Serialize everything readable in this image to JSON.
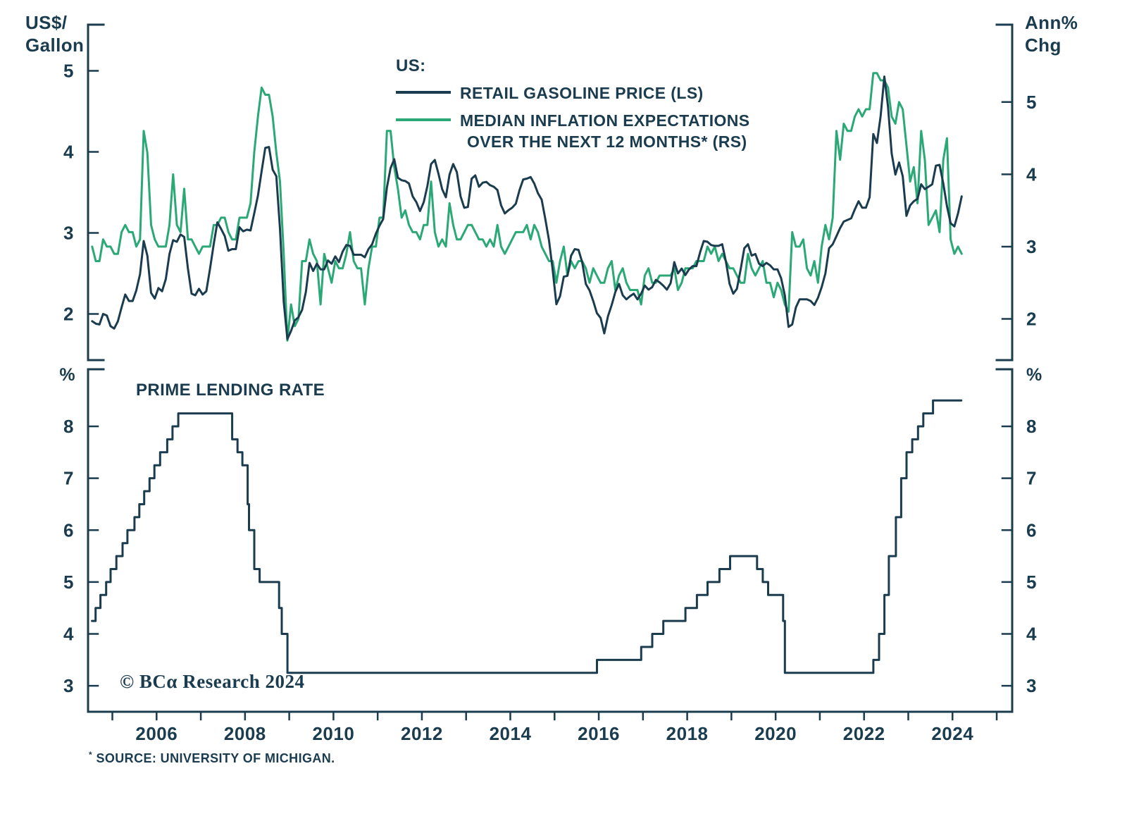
{
  "colors": {
    "navy": "#1a3c4e",
    "green": "#2aa876",
    "background": "#ffffff"
  },
  "legend": {
    "title": "US:",
    "items": [
      {
        "label": "RETAIL GASOLINE PRICE (LS)",
        "color": "#1a3c4e"
      },
      {
        "label_line1": "MEDIAN INFLATION EXPECTATIONS",
        "label_line2": "OVER THE NEXT 12 MONTHS* (RS)",
        "color": "#2aa876"
      }
    ]
  },
  "copyright": "© BCα Research 2024",
  "footnote": {
    "mark": "*",
    "text": " SOURCE: UNIVERSITY OF MICHIGAN."
  },
  "x_axis": {
    "label_years": [
      2006,
      2008,
      2010,
      2012,
      2014,
      2016,
      2018,
      2020,
      2022,
      2024
    ]
  },
  "chart_data": [
    {
      "type": "line",
      "panel": "top",
      "title": "US:",
      "grid": false,
      "x_range": [
        2004.45,
        2025.35
      ],
      "left_axis": {
        "title_line1": "US$/",
        "title_line2": "Gallon",
        "ticks": [
          2,
          3,
          4,
          5
        ],
        "range": [
          1.43,
          5.57
        ]
      },
      "right_axis": {
        "title_line1": "Ann%",
        "title_line2": "Chg",
        "ticks": [
          2,
          3,
          4,
          5
        ],
        "range": [
          1.43,
          6.07
        ]
      },
      "series": [
        {
          "name": "RETAIL GASOLINE PRICE (LS)",
          "axis": "left",
          "color": "#1a3c4e",
          "start": "2004-07",
          "freq": "monthly",
          "values": [
            1.91,
            1.88,
            1.87,
            2.0,
            1.98,
            1.85,
            1.82,
            1.91,
            2.08,
            2.24,
            2.16,
            2.16,
            2.29,
            2.49,
            2.9,
            2.72,
            2.26,
            2.19,
            2.32,
            2.28,
            2.43,
            2.74,
            2.91,
            2.89,
            2.98,
            2.95,
            2.56,
            2.25,
            2.23,
            2.31,
            2.24,
            2.28,
            2.56,
            2.86,
            3.13,
            3.05,
            2.96,
            2.78,
            2.8,
            2.8,
            3.07,
            3.02,
            3.04,
            3.03,
            3.24,
            3.46,
            3.76,
            4.05,
            4.06,
            3.78,
            3.7,
            3.05,
            2.15,
            1.69,
            1.79,
            1.92,
            1.96,
            2.05,
            2.27,
            2.63,
            2.53,
            2.62,
            2.55,
            2.55,
            2.66,
            2.62,
            2.71,
            2.64,
            2.77,
            2.85,
            2.84,
            2.73,
            2.73,
            2.73,
            2.7,
            2.8,
            2.86,
            2.99,
            3.09,
            3.17,
            3.56,
            3.8,
            3.91,
            3.68,
            3.65,
            3.64,
            3.61,
            3.45,
            3.38,
            3.27,
            3.38,
            3.58,
            3.85,
            3.9,
            3.73,
            3.54,
            3.44,
            3.72,
            3.85,
            3.75,
            3.45,
            3.31,
            3.32,
            3.67,
            3.71,
            3.57,
            3.62,
            3.63,
            3.59,
            3.57,
            3.53,
            3.34,
            3.24,
            3.28,
            3.31,
            3.36,
            3.53,
            3.66,
            3.67,
            3.69,
            3.61,
            3.49,
            3.41,
            3.17,
            2.91,
            2.54,
            2.12,
            2.22,
            2.46,
            2.47,
            2.72,
            2.8,
            2.79,
            2.64,
            2.37,
            2.29,
            2.16,
            2.01,
            1.95,
            1.76,
            1.97,
            2.11,
            2.27,
            2.37,
            2.23,
            2.18,
            2.22,
            2.25,
            2.18,
            2.25,
            2.35,
            2.3,
            2.33,
            2.42,
            2.39,
            2.35,
            2.3,
            2.38,
            2.64,
            2.5,
            2.56,
            2.48,
            2.55,
            2.59,
            2.59,
            2.76,
            2.9,
            2.89,
            2.85,
            2.84,
            2.84,
            2.86,
            2.65,
            2.37,
            2.25,
            2.31,
            2.55,
            2.81,
            2.86,
            2.72,
            2.74,
            2.62,
            2.59,
            2.63,
            2.6,
            2.55,
            2.55,
            2.44,
            2.23,
            1.84,
            1.87,
            2.08,
            2.18,
            2.18,
            2.18,
            2.16,
            2.11,
            2.2,
            2.33,
            2.5,
            2.81,
            2.86,
            2.96,
            3.06,
            3.14,
            3.16,
            3.18,
            3.29,
            3.39,
            3.31,
            3.31,
            3.44,
            4.22,
            4.11,
            4.44,
            4.93,
            4.56,
            3.98,
            3.72,
            3.87,
            3.7,
            3.21,
            3.34,
            3.39,
            3.42,
            3.6,
            3.54,
            3.57,
            3.6,
            3.83,
            3.84,
            3.61,
            3.33,
            3.12,
            3.08,
            3.24,
            3.45
          ]
        },
        {
          "name": "MEDIAN INFLATION EXPECTATIONS OVER THE NEXT 12 MONTHS* (RS)",
          "axis": "right",
          "color": "#2aa876",
          "start": "2004-07",
          "freq": "monthly",
          "values": [
            3.0,
            2.8,
            2.8,
            3.1,
            3.0,
            3.0,
            2.9,
            2.9,
            3.2,
            3.3,
            3.2,
            3.2,
            3.0,
            3.1,
            4.6,
            4.3,
            3.3,
            3.1,
            3.0,
            3.0,
            3.0,
            3.3,
            4.0,
            3.3,
            3.2,
            3.8,
            3.1,
            3.1,
            3.0,
            2.9,
            3.0,
            3.0,
            3.0,
            3.3,
            3.3,
            3.4,
            3.4,
            3.2,
            3.1,
            3.1,
            3.4,
            3.4,
            3.4,
            3.6,
            4.3,
            4.8,
            5.2,
            5.1,
            5.1,
            4.8,
            4.3,
            3.9,
            2.9,
            1.7,
            2.2,
            1.9,
            2.0,
            2.8,
            2.8,
            3.1,
            2.9,
            2.8,
            2.2,
            2.9,
            2.7,
            2.5,
            2.8,
            2.7,
            2.7,
            2.9,
            3.2,
            2.8,
            2.7,
            2.7,
            2.2,
            2.7,
            3.0,
            3.0,
            3.4,
            3.4,
            4.6,
            4.6,
            4.1,
            3.8,
            3.4,
            3.5,
            3.3,
            3.2,
            3.2,
            3.1,
            3.3,
            3.3,
            3.9,
            3.2,
            3.0,
            3.1,
            3.0,
            3.6,
            3.3,
            3.1,
            3.1,
            3.2,
            3.3,
            3.3,
            3.2,
            3.1,
            3.1,
            3.0,
            3.1,
            3.0,
            3.3,
            3.0,
            2.9,
            3.0,
            3.1,
            3.2,
            3.2,
            3.2,
            3.3,
            3.1,
            3.3,
            3.2,
            3.0,
            2.9,
            2.8,
            2.8,
            2.5,
            2.8,
            3.0,
            2.6,
            2.8,
            2.7,
            2.8,
            2.8,
            2.7,
            2.5,
            2.7,
            2.6,
            2.5,
            2.5,
            2.7,
            2.8,
            2.4,
            2.6,
            2.7,
            2.5,
            2.4,
            2.4,
            2.4,
            2.2,
            2.6,
            2.7,
            2.5,
            2.5,
            2.6,
            2.6,
            2.6,
            2.6,
            2.7,
            2.4,
            2.5,
            2.7,
            2.7,
            2.7,
            2.8,
            2.8,
            2.8,
            3.0,
            2.9,
            3.0,
            2.8,
            2.9,
            2.8,
            2.7,
            2.7,
            2.6,
            2.5,
            2.5,
            2.9,
            2.7,
            2.6,
            2.7,
            2.8,
            2.5,
            2.5,
            2.3,
            2.5,
            2.4,
            2.2,
            2.1,
            3.2,
            3.0,
            3.0,
            3.1,
            2.7,
            2.6,
            2.8,
            2.5,
            3.0,
            3.3,
            3.1,
            3.4,
            4.6,
            4.2,
            4.7,
            4.6,
            4.6,
            4.8,
            4.9,
            4.8,
            4.9,
            4.9,
            5.4,
            5.4,
            5.3,
            5.3,
            5.2,
            4.8,
            4.7,
            5.0,
            4.9,
            4.4,
            3.9,
            4.1,
            3.6,
            4.6,
            4.2,
            3.3,
            3.4,
            3.5,
            3.2,
            4.2,
            4.5,
            3.1,
            2.9,
            3.0,
            2.9
          ]
        }
      ]
    },
    {
      "type": "step",
      "panel": "bottom",
      "title": "PRIME LENDING RATE",
      "grid": false,
      "x_range": [
        2004.45,
        2025.35
      ],
      "left_axis": {
        "title": "%",
        "ticks": [
          3,
          4,
          5,
          6,
          7,
          8
        ],
        "range": [
          2.5,
          9.1
        ]
      },
      "right_axis": {
        "title": "%",
        "ticks": [
          3,
          4,
          5,
          6,
          7,
          8
        ],
        "range": [
          2.5,
          9.1
        ]
      },
      "series": [
        {
          "name": "PRIME LENDING RATE",
          "axis": "left",
          "color": "#1a3c4e",
          "end": 2024.2,
          "steps": [
            [
              2004.54,
              4.25
            ],
            [
              2004.62,
              4.5
            ],
            [
              2004.73,
              4.75
            ],
            [
              2004.86,
              5.0
            ],
            [
              2004.96,
              5.25
            ],
            [
              2005.09,
              5.5
            ],
            [
              2005.23,
              5.75
            ],
            [
              2005.34,
              6.0
            ],
            [
              2005.5,
              6.25
            ],
            [
              2005.61,
              6.5
            ],
            [
              2005.72,
              6.75
            ],
            [
              2005.84,
              7.0
            ],
            [
              2005.95,
              7.25
            ],
            [
              2006.08,
              7.5
            ],
            [
              2006.24,
              7.75
            ],
            [
              2006.36,
              8.0
            ],
            [
              2006.49,
              8.25
            ],
            [
              2007.71,
              7.75
            ],
            [
              2007.83,
              7.5
            ],
            [
              2007.94,
              7.25
            ],
            [
              2008.06,
              6.5
            ],
            [
              2008.09,
              6.0
            ],
            [
              2008.21,
              5.25
            ],
            [
              2008.33,
              5.0
            ],
            [
              2008.77,
              4.5
            ],
            [
              2008.83,
              4.0
            ],
            [
              2008.96,
              3.25
            ],
            [
              2015.96,
              3.5
            ],
            [
              2016.96,
              3.75
            ],
            [
              2017.21,
              4.0
            ],
            [
              2017.46,
              4.25
            ],
            [
              2017.96,
              4.5
            ],
            [
              2018.22,
              4.75
            ],
            [
              2018.46,
              5.0
            ],
            [
              2018.73,
              5.25
            ],
            [
              2018.97,
              5.5
            ],
            [
              2019.58,
              5.25
            ],
            [
              2019.71,
              5.0
            ],
            [
              2019.83,
              4.75
            ],
            [
              2020.17,
              4.25
            ],
            [
              2020.21,
              3.25
            ],
            [
              2022.21,
              3.5
            ],
            [
              2022.34,
              4.0
            ],
            [
              2022.46,
              4.75
            ],
            [
              2022.56,
              5.5
            ],
            [
              2022.72,
              6.25
            ],
            [
              2022.84,
              7.0
            ],
            [
              2022.96,
              7.5
            ],
            [
              2023.09,
              7.75
            ],
            [
              2023.22,
              8.0
            ],
            [
              2023.34,
              8.25
            ],
            [
              2023.56,
              8.5
            ]
          ]
        }
      ]
    }
  ]
}
